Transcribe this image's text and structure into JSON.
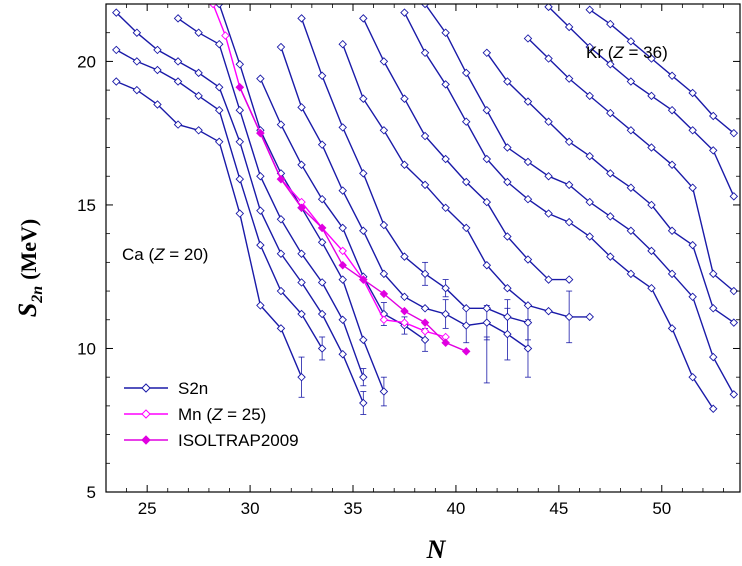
{
  "chart_data": {
    "type": "line",
    "xlabel": "N",
    "ylabel_main": "S",
    "ylabel_sub": "2n",
    "ylabel_unit": "(MeV)",
    "xlim": [
      23,
      53.8
    ],
    "ylim": [
      5,
      22
    ],
    "xticks": [
      25,
      30,
      35,
      40,
      45,
      50
    ],
    "yticks": [
      5,
      10,
      15,
      20
    ],
    "grid": false,
    "legend_position": "bottom-left",
    "colors": {
      "s2n": "#1a1aa8",
      "mn": "#ff00ff",
      "isoltrap": "#e000e0"
    },
    "annotations": [
      {
        "pre": "Ca (",
        "var": "Z",
        "post": " = 20)"
      },
      {
        "pre": "Kr (",
        "var": "Z",
        "post": " = 36)"
      }
    ],
    "legend": [
      {
        "pre": "S2n",
        "var": "",
        "post": ""
      },
      {
        "pre": "Mn (",
        "var": "Z",
        "post": " = 25)"
      },
      {
        "pre": "ISOLTRAP2009",
        "var": "",
        "post": ""
      }
    ],
    "series": [
      {
        "role": "S2n",
        "values": [
          [
            23.5,
            19.3
          ],
          [
            24.5,
            19.0
          ],
          [
            25.5,
            18.5
          ],
          [
            26.5,
            17.8
          ],
          [
            27.5,
            17.6
          ],
          [
            28.5,
            17.2
          ],
          [
            29.5,
            14.7
          ],
          [
            30.5,
            11.5
          ],
          [
            31.5,
            10.7
          ],
          [
            32.5,
            9.0
          ]
        ]
      },
      {
        "role": "S2n",
        "values": [
          [
            23.5,
            20.4
          ],
          [
            24.5,
            20.0
          ],
          [
            25.5,
            19.7
          ],
          [
            26.5,
            19.3
          ],
          [
            27.5,
            18.8
          ],
          [
            28.5,
            18.3
          ],
          [
            29.5,
            15.9
          ],
          [
            30.5,
            13.6
          ],
          [
            31.5,
            12.0
          ],
          [
            32.5,
            11.2
          ],
          [
            33.5,
            10.0
          ]
        ]
      },
      {
        "role": "S2n",
        "values": [
          [
            23.5,
            21.7
          ],
          [
            24.5,
            21.0
          ],
          [
            25.5,
            20.4
          ],
          [
            26.5,
            20.0
          ],
          [
            27.5,
            19.6
          ],
          [
            28.5,
            19.1
          ],
          [
            29.5,
            17.2
          ],
          [
            30.5,
            14.8
          ],
          [
            31.5,
            13.3
          ],
          [
            32.5,
            12.3
          ],
          [
            33.5,
            11.2
          ],
          [
            34.5,
            9.8
          ],
          [
            35.5,
            8.1
          ]
        ]
      },
      {
        "role": "S2n",
        "values": [
          [
            26.5,
            21.5
          ],
          [
            27.5,
            21.0
          ],
          [
            28.5,
            20.6
          ],
          [
            29.5,
            18.3
          ],
          [
            30.5,
            16.0
          ],
          [
            31.5,
            14.5
          ],
          [
            32.5,
            13.3
          ],
          [
            33.5,
            12.3
          ],
          [
            34.5,
            11.0
          ],
          [
            35.5,
            9.0
          ]
        ]
      },
      {
        "role": "S2n",
        "values": [
          [
            28.5,
            22.0
          ],
          [
            29.5,
            19.9
          ],
          [
            30.5,
            17.6
          ],
          [
            31.5,
            16.1
          ],
          [
            32.5,
            14.9
          ],
          [
            33.5,
            13.7
          ],
          [
            34.5,
            12.4
          ],
          [
            35.5,
            10.3
          ],
          [
            36.5,
            8.5
          ]
        ]
      },
      {
        "role": "S2n",
        "values": [
          [
            30.5,
            19.4
          ],
          [
            31.5,
            17.8
          ],
          [
            32.5,
            16.4
          ],
          [
            33.5,
            15.2
          ],
          [
            34.5,
            14.2
          ],
          [
            35.5,
            12.5
          ],
          [
            36.5,
            11.2
          ],
          [
            37.5,
            10.8
          ],
          [
            38.5,
            10.3
          ]
        ]
      },
      {
        "role": "S2n",
        "values": [
          [
            31.5,
            20.5
          ],
          [
            32.5,
            18.4
          ],
          [
            33.5,
            17.1
          ],
          [
            34.5,
            15.5
          ],
          [
            35.5,
            14.1
          ],
          [
            36.5,
            12.6
          ],
          [
            37.5,
            11.8
          ],
          [
            38.5,
            11.4
          ],
          [
            39.5,
            11.2
          ],
          [
            40.5,
            10.8
          ],
          [
            41.5,
            10.9
          ],
          [
            42.5,
            10.5
          ],
          [
            43.5,
            10.0
          ]
        ]
      },
      {
        "role": "S2n",
        "values": [
          [
            32.5,
            21.5
          ],
          [
            33.5,
            19.5
          ],
          [
            34.5,
            17.7
          ],
          [
            35.5,
            16.1
          ],
          [
            36.5,
            14.3
          ],
          [
            37.5,
            13.2
          ],
          [
            38.5,
            12.6
          ],
          [
            39.5,
            12.1
          ],
          [
            40.5,
            11.4
          ],
          [
            41.5,
            11.4
          ],
          [
            42.5,
            11.1
          ],
          [
            43.5,
            10.9
          ]
        ]
      },
      {
        "role": "S2n",
        "values": [
          [
            34.5,
            20.6
          ],
          [
            35.5,
            18.7
          ],
          [
            36.5,
            17.6
          ],
          [
            37.5,
            16.4
          ],
          [
            38.5,
            15.7
          ],
          [
            39.5,
            14.9
          ],
          [
            40.5,
            14.2
          ],
          [
            41.5,
            12.9
          ],
          [
            42.5,
            12.1
          ],
          [
            43.5,
            11.5
          ],
          [
            44.5,
            11.3
          ],
          [
            45.5,
            11.1
          ],
          [
            46.5,
            11.1
          ]
        ]
      },
      {
        "role": "S2n",
        "values": [
          [
            35.5,
            21.5
          ],
          [
            36.5,
            20.0
          ],
          [
            37.5,
            18.7
          ],
          [
            38.5,
            17.4
          ],
          [
            39.5,
            16.6
          ],
          [
            40.5,
            15.8
          ],
          [
            41.5,
            15.1
          ],
          [
            42.5,
            13.9
          ],
          [
            43.5,
            13.1
          ],
          [
            44.5,
            12.4
          ],
          [
            45.5,
            12.4
          ]
        ]
      },
      {
        "role": "S2n",
        "values": [
          [
            37.5,
            21.7
          ],
          [
            38.5,
            20.3
          ],
          [
            39.5,
            19.2
          ],
          [
            40.5,
            17.9
          ],
          [
            41.5,
            16.6
          ],
          [
            42.5,
            15.8
          ],
          [
            43.5,
            15.2
          ],
          [
            44.5,
            14.7
          ],
          [
            45.5,
            14.4
          ],
          [
            46.5,
            13.9
          ],
          [
            47.5,
            13.2
          ],
          [
            48.5,
            12.6
          ],
          [
            49.5,
            12.1
          ],
          [
            50.5,
            10.7
          ],
          [
            51.5,
            9.0
          ],
          [
            52.5,
            7.9
          ]
        ]
      },
      {
        "role": "S2n",
        "values": [
          [
            38.5,
            22.0
          ],
          [
            39.5,
            21.0
          ],
          [
            40.5,
            19.6
          ],
          [
            41.5,
            18.3
          ],
          [
            42.5,
            17.0
          ],
          [
            43.5,
            16.5
          ],
          [
            44.5,
            16.0
          ],
          [
            45.5,
            15.7
          ],
          [
            46.5,
            15.1
          ],
          [
            47.5,
            14.6
          ],
          [
            48.5,
            14.1
          ],
          [
            49.5,
            13.4
          ],
          [
            50.5,
            12.6
          ],
          [
            51.5,
            11.8
          ],
          [
            52.5,
            9.7
          ],
          [
            53.5,
            8.4
          ]
        ]
      },
      {
        "role": "S2n",
        "values": [
          [
            41.5,
            20.3
          ],
          [
            42.5,
            19.3
          ],
          [
            43.5,
            18.6
          ],
          [
            44.5,
            17.9
          ],
          [
            45.5,
            17.2
          ],
          [
            46.5,
            16.7
          ],
          [
            47.5,
            16.1
          ],
          [
            48.5,
            15.6
          ],
          [
            49.5,
            15.0
          ],
          [
            50.5,
            14.1
          ],
          [
            51.5,
            13.6
          ],
          [
            52.5,
            11.4
          ],
          [
            53.5,
            10.9
          ]
        ]
      },
      {
        "role": "S2n",
        "values": [
          [
            43.5,
            20.8
          ],
          [
            44.5,
            20.1
          ],
          [
            45.5,
            19.4
          ],
          [
            46.5,
            18.8
          ],
          [
            47.5,
            18.2
          ],
          [
            48.5,
            17.6
          ],
          [
            49.5,
            17.0
          ],
          [
            50.5,
            16.4
          ],
          [
            51.5,
            15.6
          ],
          [
            52.5,
            12.6
          ],
          [
            53.5,
            12.0
          ]
        ]
      },
      {
        "role": "S2n",
        "values": [
          [
            44.5,
            21.9
          ],
          [
            45.5,
            21.2
          ],
          [
            46.5,
            20.5
          ],
          [
            47.5,
            19.9
          ],
          [
            48.5,
            19.3
          ],
          [
            49.5,
            18.8
          ],
          [
            50.5,
            18.3
          ],
          [
            51.5,
            17.6
          ],
          [
            52.5,
            16.9
          ],
          [
            53.5,
            15.3
          ]
        ]
      },
      {
        "role": "S2n",
        "values": [
          [
            46.5,
            21.8
          ],
          [
            47.5,
            21.3
          ],
          [
            48.5,
            20.7
          ],
          [
            49.5,
            20.1
          ],
          [
            50.5,
            19.5
          ],
          [
            51.5,
            18.9
          ],
          [
            52.5,
            18.1
          ],
          [
            53.5,
            17.5
          ]
        ]
      },
      {
        "role": "Mn",
        "values": [
          [
            28.2,
            22.0
          ],
          [
            28.8,
            20.9
          ],
          [
            29.5,
            19.1
          ],
          [
            30.5,
            17.5
          ],
          [
            31.5,
            15.9
          ],
          [
            32.5,
            15.1
          ],
          [
            33.5,
            14.2
          ],
          [
            34.5,
            13.4
          ],
          [
            35.5,
            12.4
          ],
          [
            36.5,
            11.0
          ],
          [
            37.5,
            10.9
          ],
          [
            38.5,
            10.6
          ],
          [
            39.5,
            10.4
          ]
        ]
      },
      {
        "role": "ISOLTRAP2009",
        "values": [
          [
            29.5,
            19.1
          ],
          [
            30.5,
            17.5
          ],
          [
            31.5,
            15.9
          ],
          [
            32.5,
            14.9
          ],
          [
            33.5,
            14.2
          ],
          [
            34.5,
            12.9
          ],
          [
            35.5,
            12.4
          ],
          [
            36.5,
            11.9
          ],
          [
            37.5,
            11.3
          ],
          [
            38.5,
            10.9
          ],
          [
            39.5,
            10.2
          ],
          [
            40.5,
            9.9
          ]
        ]
      }
    ],
    "error_bars": [
      {
        "x": 32.5,
        "y": 9.0,
        "err": 0.7
      },
      {
        "x": 33.5,
        "y": 10.0,
        "err": 0.4
      },
      {
        "x": 35.5,
        "y": 8.1,
        "err": 0.4
      },
      {
        "x": 36.5,
        "y": 8.5,
        "err": 0.5
      },
      {
        "x": 35.5,
        "y": 9.0,
        "err": 0.3
      },
      {
        "x": 36.5,
        "y": 11.2,
        "err": 0.4
      },
      {
        "x": 37.5,
        "y": 10.8,
        "err": 0.3
      },
      {
        "x": 38.5,
        "y": 10.3,
        "err": 0.4
      },
      {
        "x": 39.5,
        "y": 11.2,
        "err": 0.5
      },
      {
        "x": 40.5,
        "y": 10.8,
        "err": 0.6
      },
      {
        "x": 41.5,
        "y": 10.9,
        "err": 0.6
      },
      {
        "x": 41.5,
        "y": 9.6,
        "err": 0.8
      },
      {
        "x": 42.5,
        "y": 10.5,
        "err": 0.9
      },
      {
        "x": 43.5,
        "y": 10.0,
        "err": 1.0
      },
      {
        "x": 42.5,
        "y": 11.1,
        "err": 0.6
      },
      {
        "x": 43.5,
        "y": 10.9,
        "err": 0.6
      },
      {
        "x": 45.5,
        "y": 11.1,
        "err": 0.9
      },
      {
        "x": 38.5,
        "y": 12.6,
        "err": 0.4
      },
      {
        "x": 39.5,
        "y": 12.1,
        "err": 0.3
      }
    ]
  }
}
